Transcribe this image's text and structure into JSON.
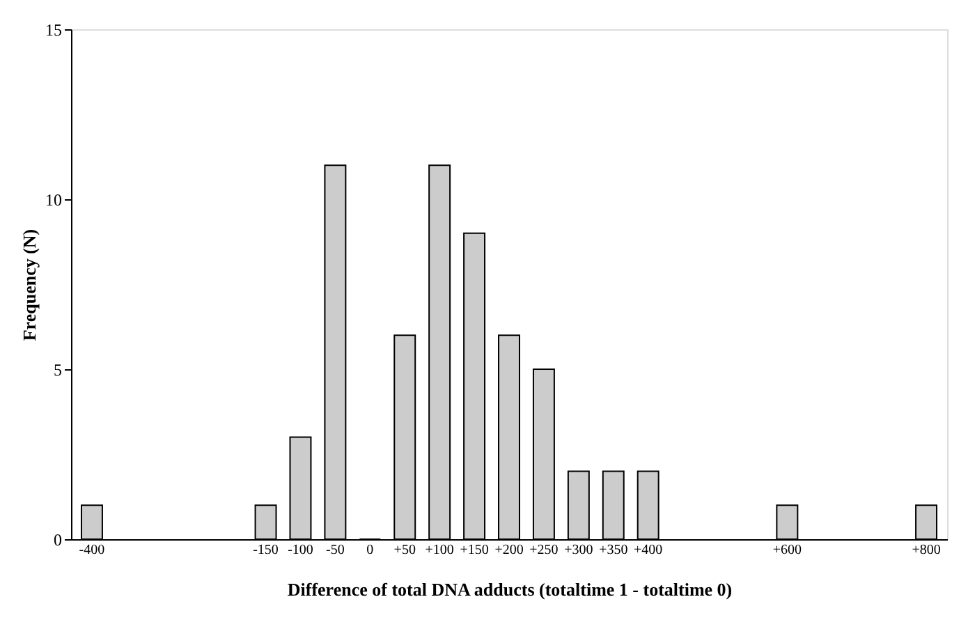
{
  "chart_data": {
    "type": "bar",
    "xlabel": "Difference of total DNA adducts (totaltime 1 - totaltime 0)",
    "ylabel": "Frequency (N)",
    "categories": [
      "-400",
      null,
      null,
      null,
      null,
      "-150",
      "-100",
      "-50",
      "0",
      "+50",
      "+100",
      "+150",
      "+200",
      "+250",
      "+300",
      "+350",
      "+400",
      null,
      null,
      null,
      "+600",
      null,
      null,
      null,
      "+800"
    ],
    "values": [
      1,
      null,
      null,
      null,
      null,
      1,
      3,
      11,
      0,
      6,
      11,
      9,
      6,
      5,
      2,
      2,
      2,
      null,
      null,
      null,
      1,
      null,
      null,
      null,
      1
    ],
    "color": "#cccccc",
    "ylim": [
      0,
      15
    ],
    "yticks": [
      0,
      5,
      10,
      15
    ],
    "grid": false
  }
}
